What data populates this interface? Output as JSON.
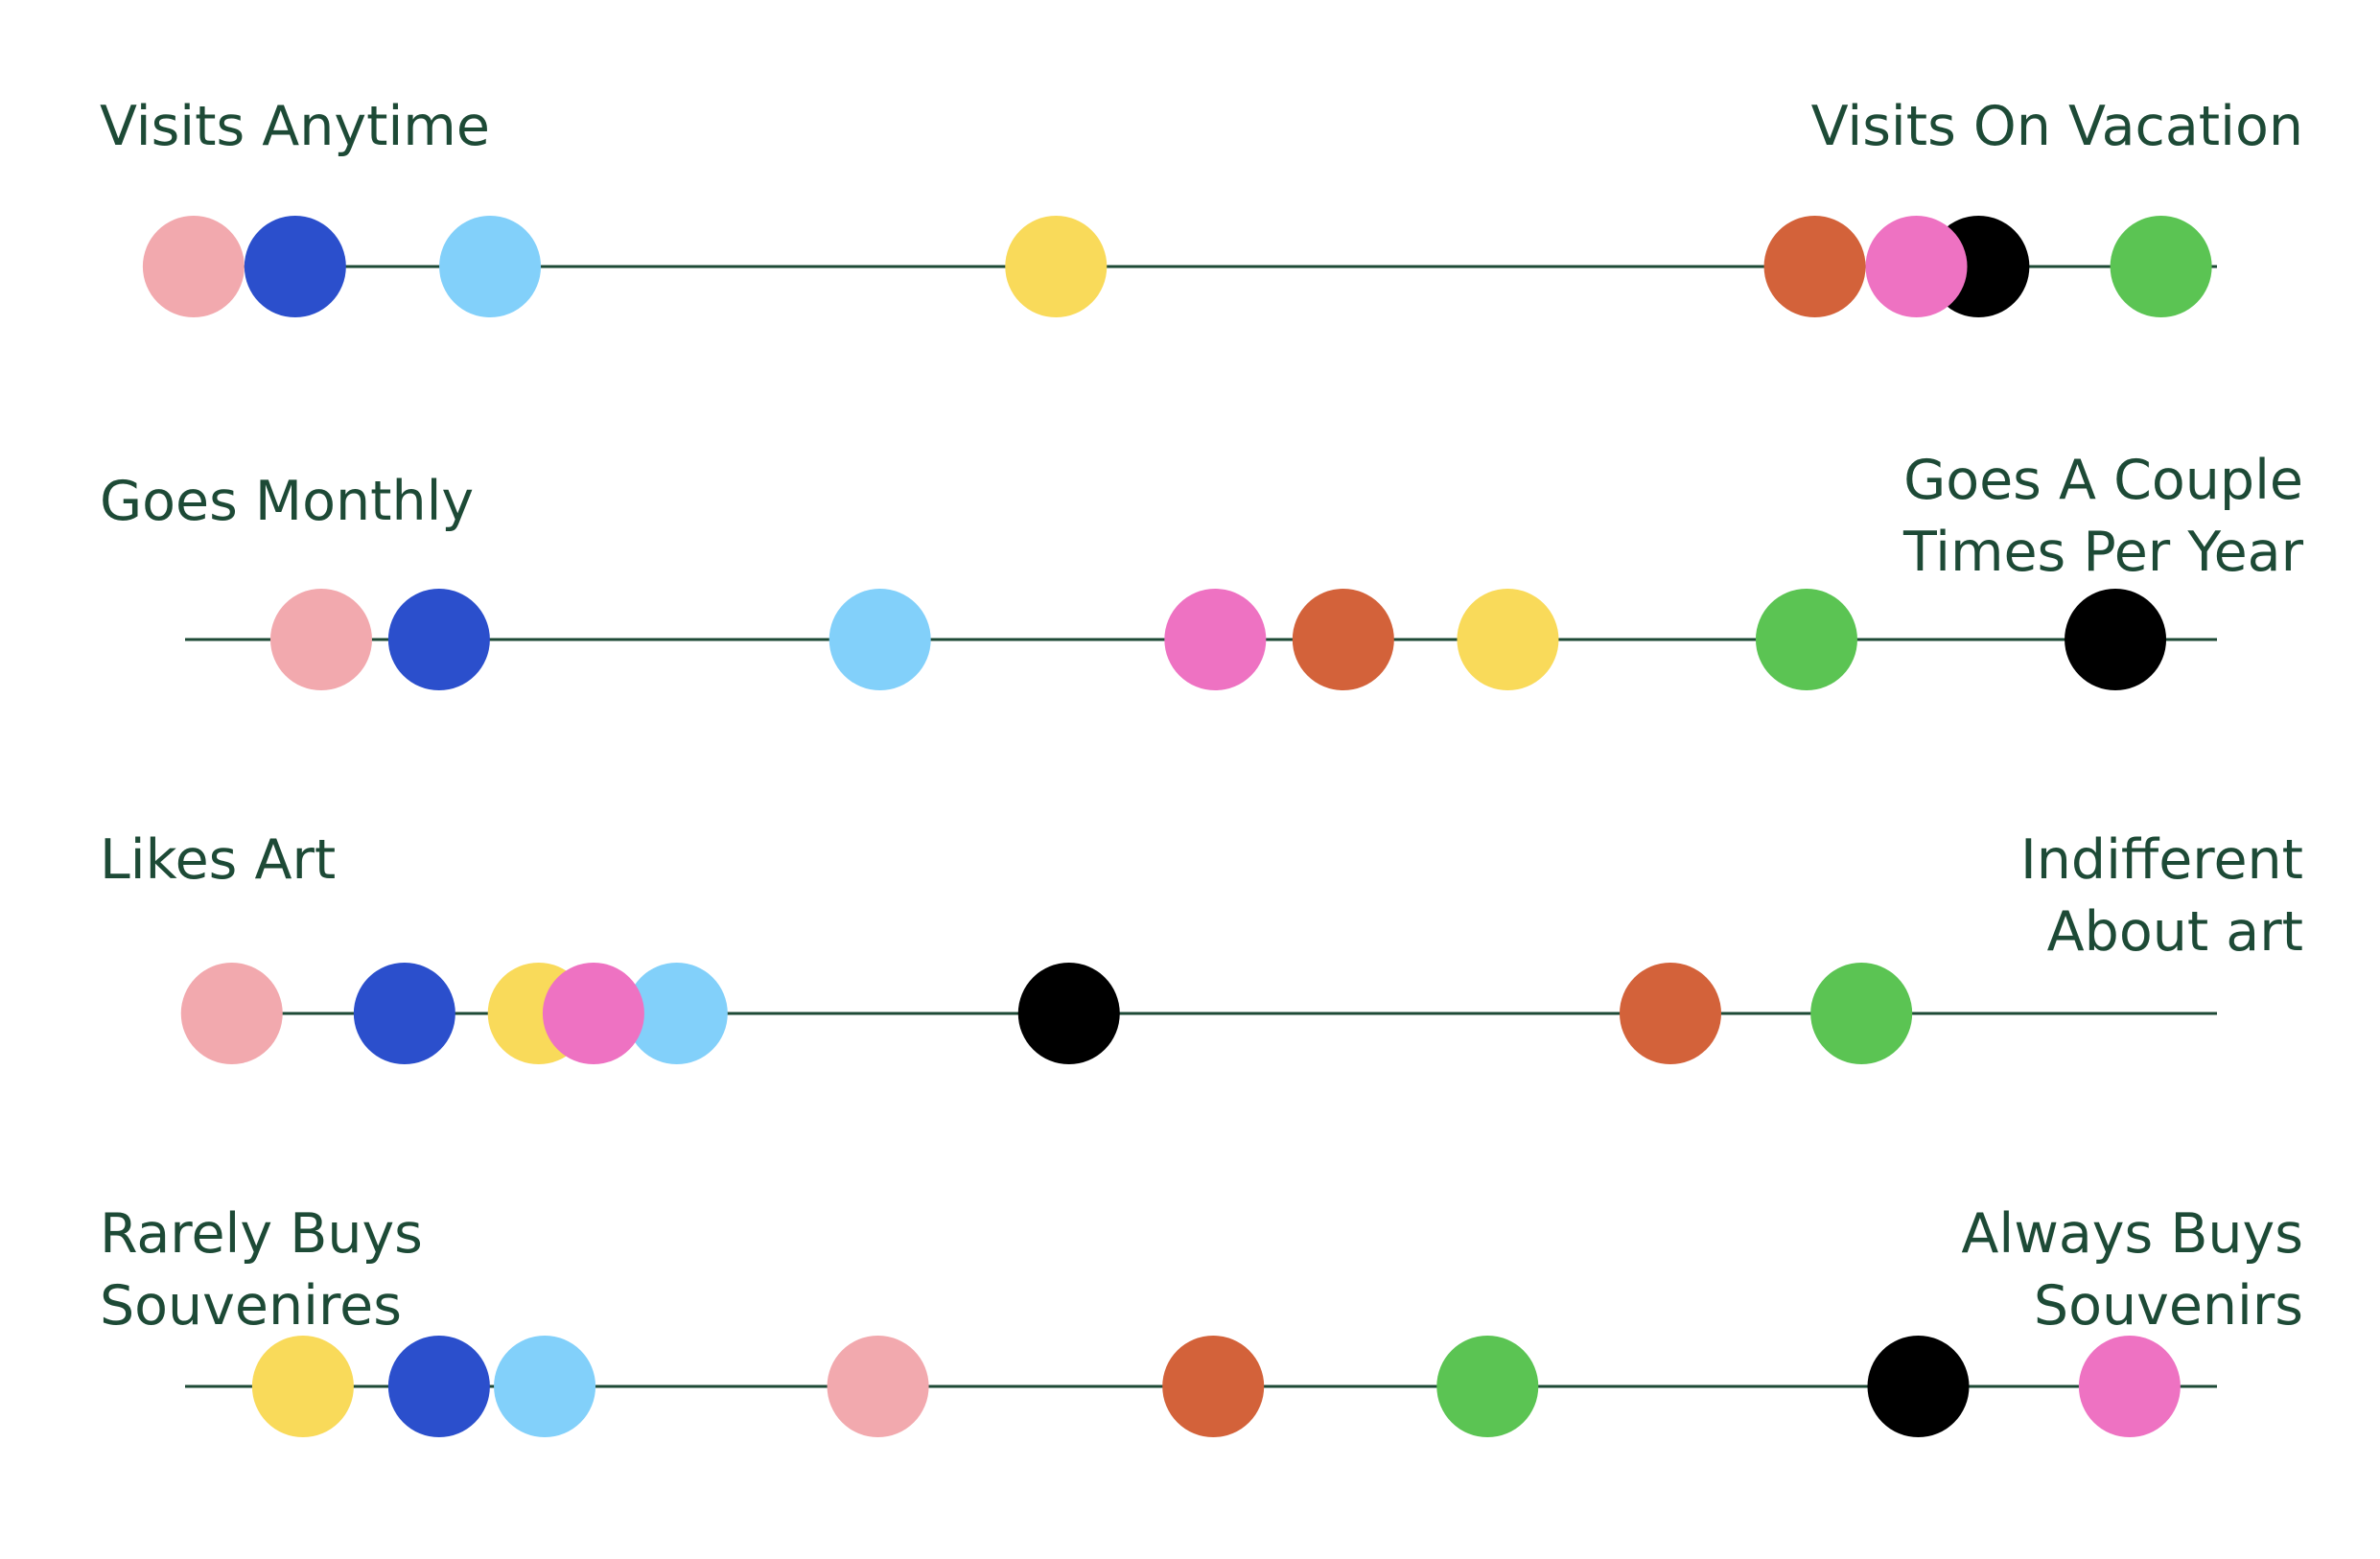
{
  "palette": {
    "text": "#1d4a36",
    "line": "#1d4a36"
  },
  "scales": [
    {
      "left_label": "Visits Anytime",
      "right_label": "Visits On Vacation",
      "dots": [
        {
          "value": 0.024,
          "color": "#f2a9ae"
        },
        {
          "value": 0.073,
          "color": "#2b4fcc"
        },
        {
          "value": 0.167,
          "color": "#82d0fa"
        },
        {
          "value": 0.44,
          "color": "#f9da5a"
        },
        {
          "value": 0.806,
          "color": "#d3623a"
        },
        {
          "value": 0.885,
          "color": "#000000"
        },
        {
          "value": 0.855,
          "color": "#ee72c2"
        },
        {
          "value": 0.973,
          "color": "#5bc453"
        }
      ]
    },
    {
      "left_label": "Goes Monthly",
      "right_label": "Goes A Couple\nTimes Per Year",
      "dots": [
        {
          "value": 0.067,
          "color": "#f2a9ae"
        },
        {
          "value": 0.125,
          "color": "#2b4fcc"
        },
        {
          "value": 0.342,
          "color": "#82d0fa"
        },
        {
          "value": 0.507,
          "color": "#ee72c2"
        },
        {
          "value": 0.57,
          "color": "#d3623a"
        },
        {
          "value": 0.651,
          "color": "#f9da5a"
        },
        {
          "value": 0.798,
          "color": "#5bc453"
        },
        {
          "value": 0.95,
          "color": "#000000"
        }
      ]
    },
    {
      "left_label": "Likes Art",
      "right_label": "Indifferent\nAbout art",
      "dots": [
        {
          "value": 0.023,
          "color": "#f2a9ae"
        },
        {
          "value": 0.108,
          "color": "#2b4fcc"
        },
        {
          "value": 0.174,
          "color": "#f9da5a"
        },
        {
          "value": 0.242,
          "color": "#82d0fa"
        },
        {
          "value": 0.201,
          "color": "#ee72c2"
        },
        {
          "value": 0.435,
          "color": "#000000"
        },
        {
          "value": 0.731,
          "color": "#d3623a"
        },
        {
          "value": 0.825,
          "color": "#5bc453"
        }
      ]
    },
    {
      "left_label": "Rarely Buys\nSouvenires",
      "right_label": "Always Buys\nSouvenirs",
      "dots": [
        {
          "value": 0.058,
          "color": "#f9da5a"
        },
        {
          "value": 0.125,
          "color": "#2b4fcc"
        },
        {
          "value": 0.177,
          "color": "#82d0fa"
        },
        {
          "value": 0.341,
          "color": "#f2a9ae"
        },
        {
          "value": 0.506,
          "color": "#d3623a"
        },
        {
          "value": 0.641,
          "color": "#5bc453"
        },
        {
          "value": 0.853,
          "color": "#000000"
        },
        {
          "value": 0.957,
          "color": "#ee72c2"
        }
      ]
    }
  ]
}
